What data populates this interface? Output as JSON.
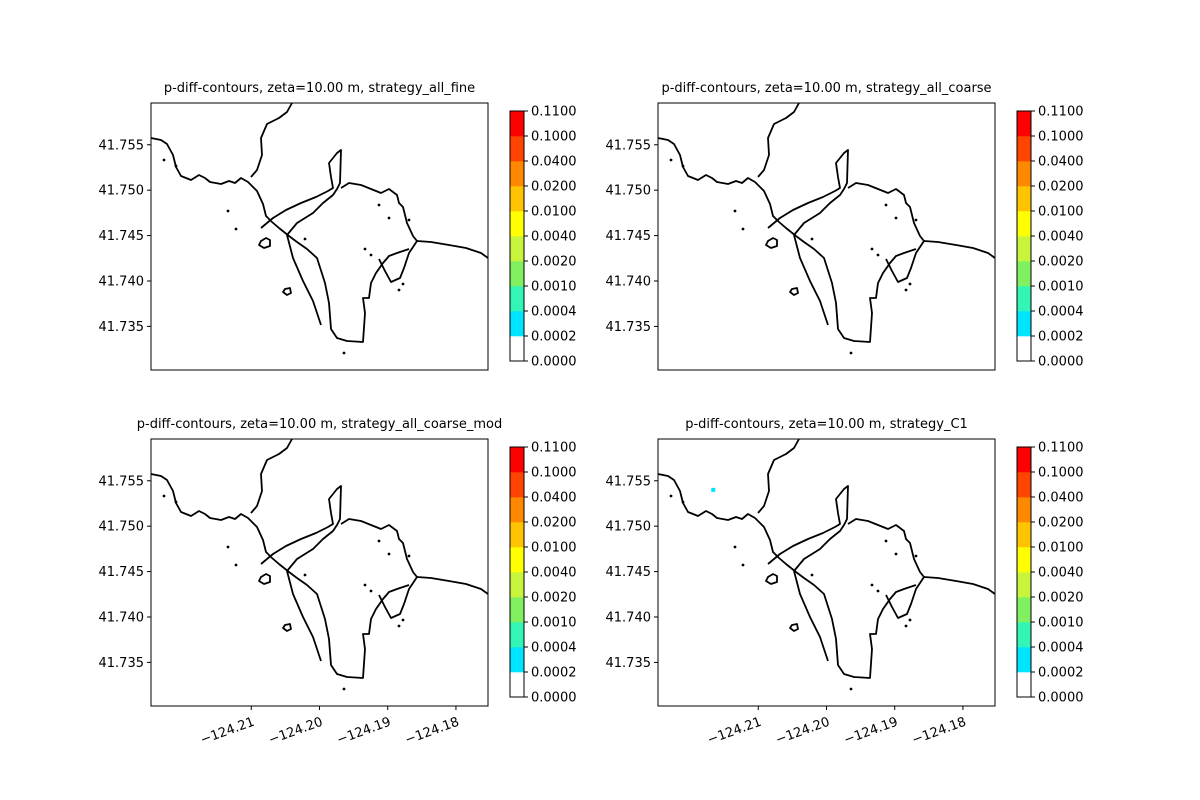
{
  "colorbar": {
    "levels": [
      "0.0000",
      "0.0002",
      "0.0004",
      "0.0010",
      "0.0020",
      "0.0040",
      "0.0100",
      "0.0200",
      "0.0400",
      "0.1000",
      "0.1100"
    ],
    "colors": [
      "#ffffff",
      "#00e5ff",
      "#33f5b5",
      "#80f060",
      "#c8f53c",
      "#ffff00",
      "#ffc400",
      "#ff8800",
      "#ff4400",
      "#ff0000"
    ]
  },
  "colors": {
    "coastline": "#000000",
    "axes": "#000000",
    "highlight_cell": "#00e5ff"
  },
  "chart_data": [
    {
      "type": "heatmap",
      "title": "p-diff-contours, zeta=10.00 m, strategy_all_fine",
      "xlabel": "",
      "ylabel": "",
      "xlim": [
        -124.2247,
        -124.1753
      ],
      "ylim": [
        41.7302,
        41.7596
      ],
      "x_ticks": [],
      "x_tick_labels": [],
      "y_ticks": [
        41.735,
        41.74,
        41.745,
        41.75,
        41.755
      ],
      "y_tick_labels": [
        "41.735",
        "41.740",
        "41.745",
        "41.750",
        "41.755"
      ],
      "colorbar_ticks": [
        "0.0000",
        "0.0002",
        "0.0004",
        "0.0010",
        "0.0020",
        "0.0040",
        "0.0100",
        "0.0200",
        "0.0400",
        "0.1000",
        "0.1100"
      ],
      "highlight_cells": []
    },
    {
      "type": "heatmap",
      "title": "p-diff-contours, zeta=10.00 m, strategy_all_coarse",
      "xlabel": "",
      "ylabel": "",
      "xlim": [
        -124.2247,
        -124.1753
      ],
      "ylim": [
        41.7302,
        41.7596
      ],
      "x_ticks": [],
      "x_tick_labels": [],
      "y_ticks": [
        41.735,
        41.74,
        41.745,
        41.75,
        41.755
      ],
      "y_tick_labels": [
        "41.735",
        "41.740",
        "41.745",
        "41.750",
        "41.755"
      ],
      "colorbar_ticks": [
        "0.0000",
        "0.0002",
        "0.0004",
        "0.0010",
        "0.0020",
        "0.0040",
        "0.0100",
        "0.0200",
        "0.0400",
        "0.1000",
        "0.1100"
      ],
      "highlight_cells": []
    },
    {
      "type": "heatmap",
      "title": "p-diff-contours, zeta=10.00 m, strategy_all_coarse_mod",
      "xlabel": "",
      "ylabel": "",
      "xlim": [
        -124.2247,
        -124.1753
      ],
      "ylim": [
        41.7302,
        41.7596
      ],
      "x_ticks": [
        -124.21,
        -124.2,
        -124.19,
        -124.18
      ],
      "x_tick_labels": [
        "−124.21",
        "−124.20",
        "−124.19",
        "−124.18"
      ],
      "y_ticks": [
        41.735,
        41.74,
        41.745,
        41.75,
        41.755
      ],
      "y_tick_labels": [
        "41.735",
        "41.740",
        "41.745",
        "41.750",
        "41.755"
      ],
      "colorbar_ticks": [
        "0.0000",
        "0.0002",
        "0.0004",
        "0.0010",
        "0.0020",
        "0.0040",
        "0.0100",
        "0.0200",
        "0.0400",
        "0.1000",
        "0.1100"
      ],
      "highlight_cells": []
    },
    {
      "type": "heatmap",
      "title": "p-diff-contours, zeta=10.00 m, strategy_C1",
      "xlabel": "",
      "ylabel": "",
      "xlim": [
        -124.2247,
        -124.1753
      ],
      "ylim": [
        41.7302,
        41.7596
      ],
      "x_ticks": [
        -124.21,
        -124.2,
        -124.19,
        -124.18
      ],
      "x_tick_labels": [
        "−124.21",
        "−124.20",
        "−124.19",
        "−124.18"
      ],
      "y_ticks": [
        41.735,
        41.74,
        41.745,
        41.75,
        41.755
      ],
      "y_tick_labels": [
        "41.735",
        "41.740",
        "41.745",
        "41.750",
        "41.755"
      ],
      "colorbar_ticks": [
        "0.0000",
        "0.0002",
        "0.0004",
        "0.0010",
        "0.0020",
        "0.0040",
        "0.0100",
        "0.0200",
        "0.0400",
        "0.1000",
        "0.1100"
      ],
      "highlight_cells": [
        {
          "lon": -124.2166,
          "lat": 41.754,
          "value_band": "0.0002"
        }
      ]
    }
  ]
}
